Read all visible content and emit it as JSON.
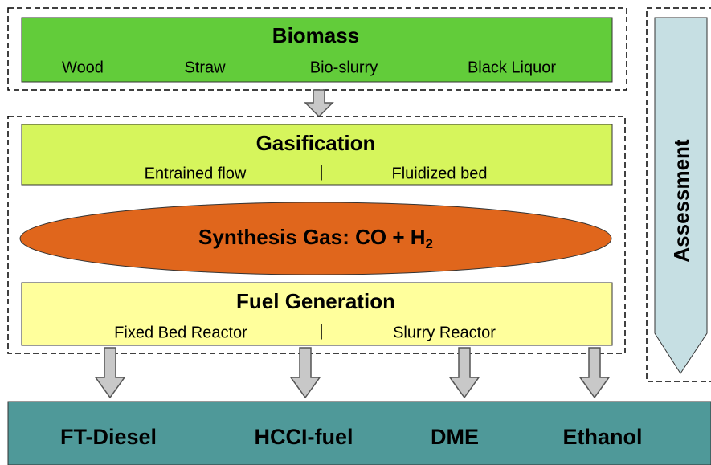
{
  "biomass": {
    "title": "Biomass",
    "items": [
      "Wood",
      "Straw",
      "Bio-slurry",
      "Black Liquor"
    ]
  },
  "gasification": {
    "title": "Gasification",
    "items": [
      "Entrained flow",
      "|",
      "Fluidized bed"
    ]
  },
  "synthesis": {
    "title": "Synthesis Gas: CO + H",
    "subscript": "2"
  },
  "fuel_generation": {
    "title": "Fuel Generation",
    "items": [
      "Fixed Bed Reactor",
      "|",
      "Slurry Reactor"
    ]
  },
  "products": [
    "FT-Diesel",
    "HCCI-fuel",
    "DME",
    "Ethanol"
  ],
  "assessment": "Assessment"
}
